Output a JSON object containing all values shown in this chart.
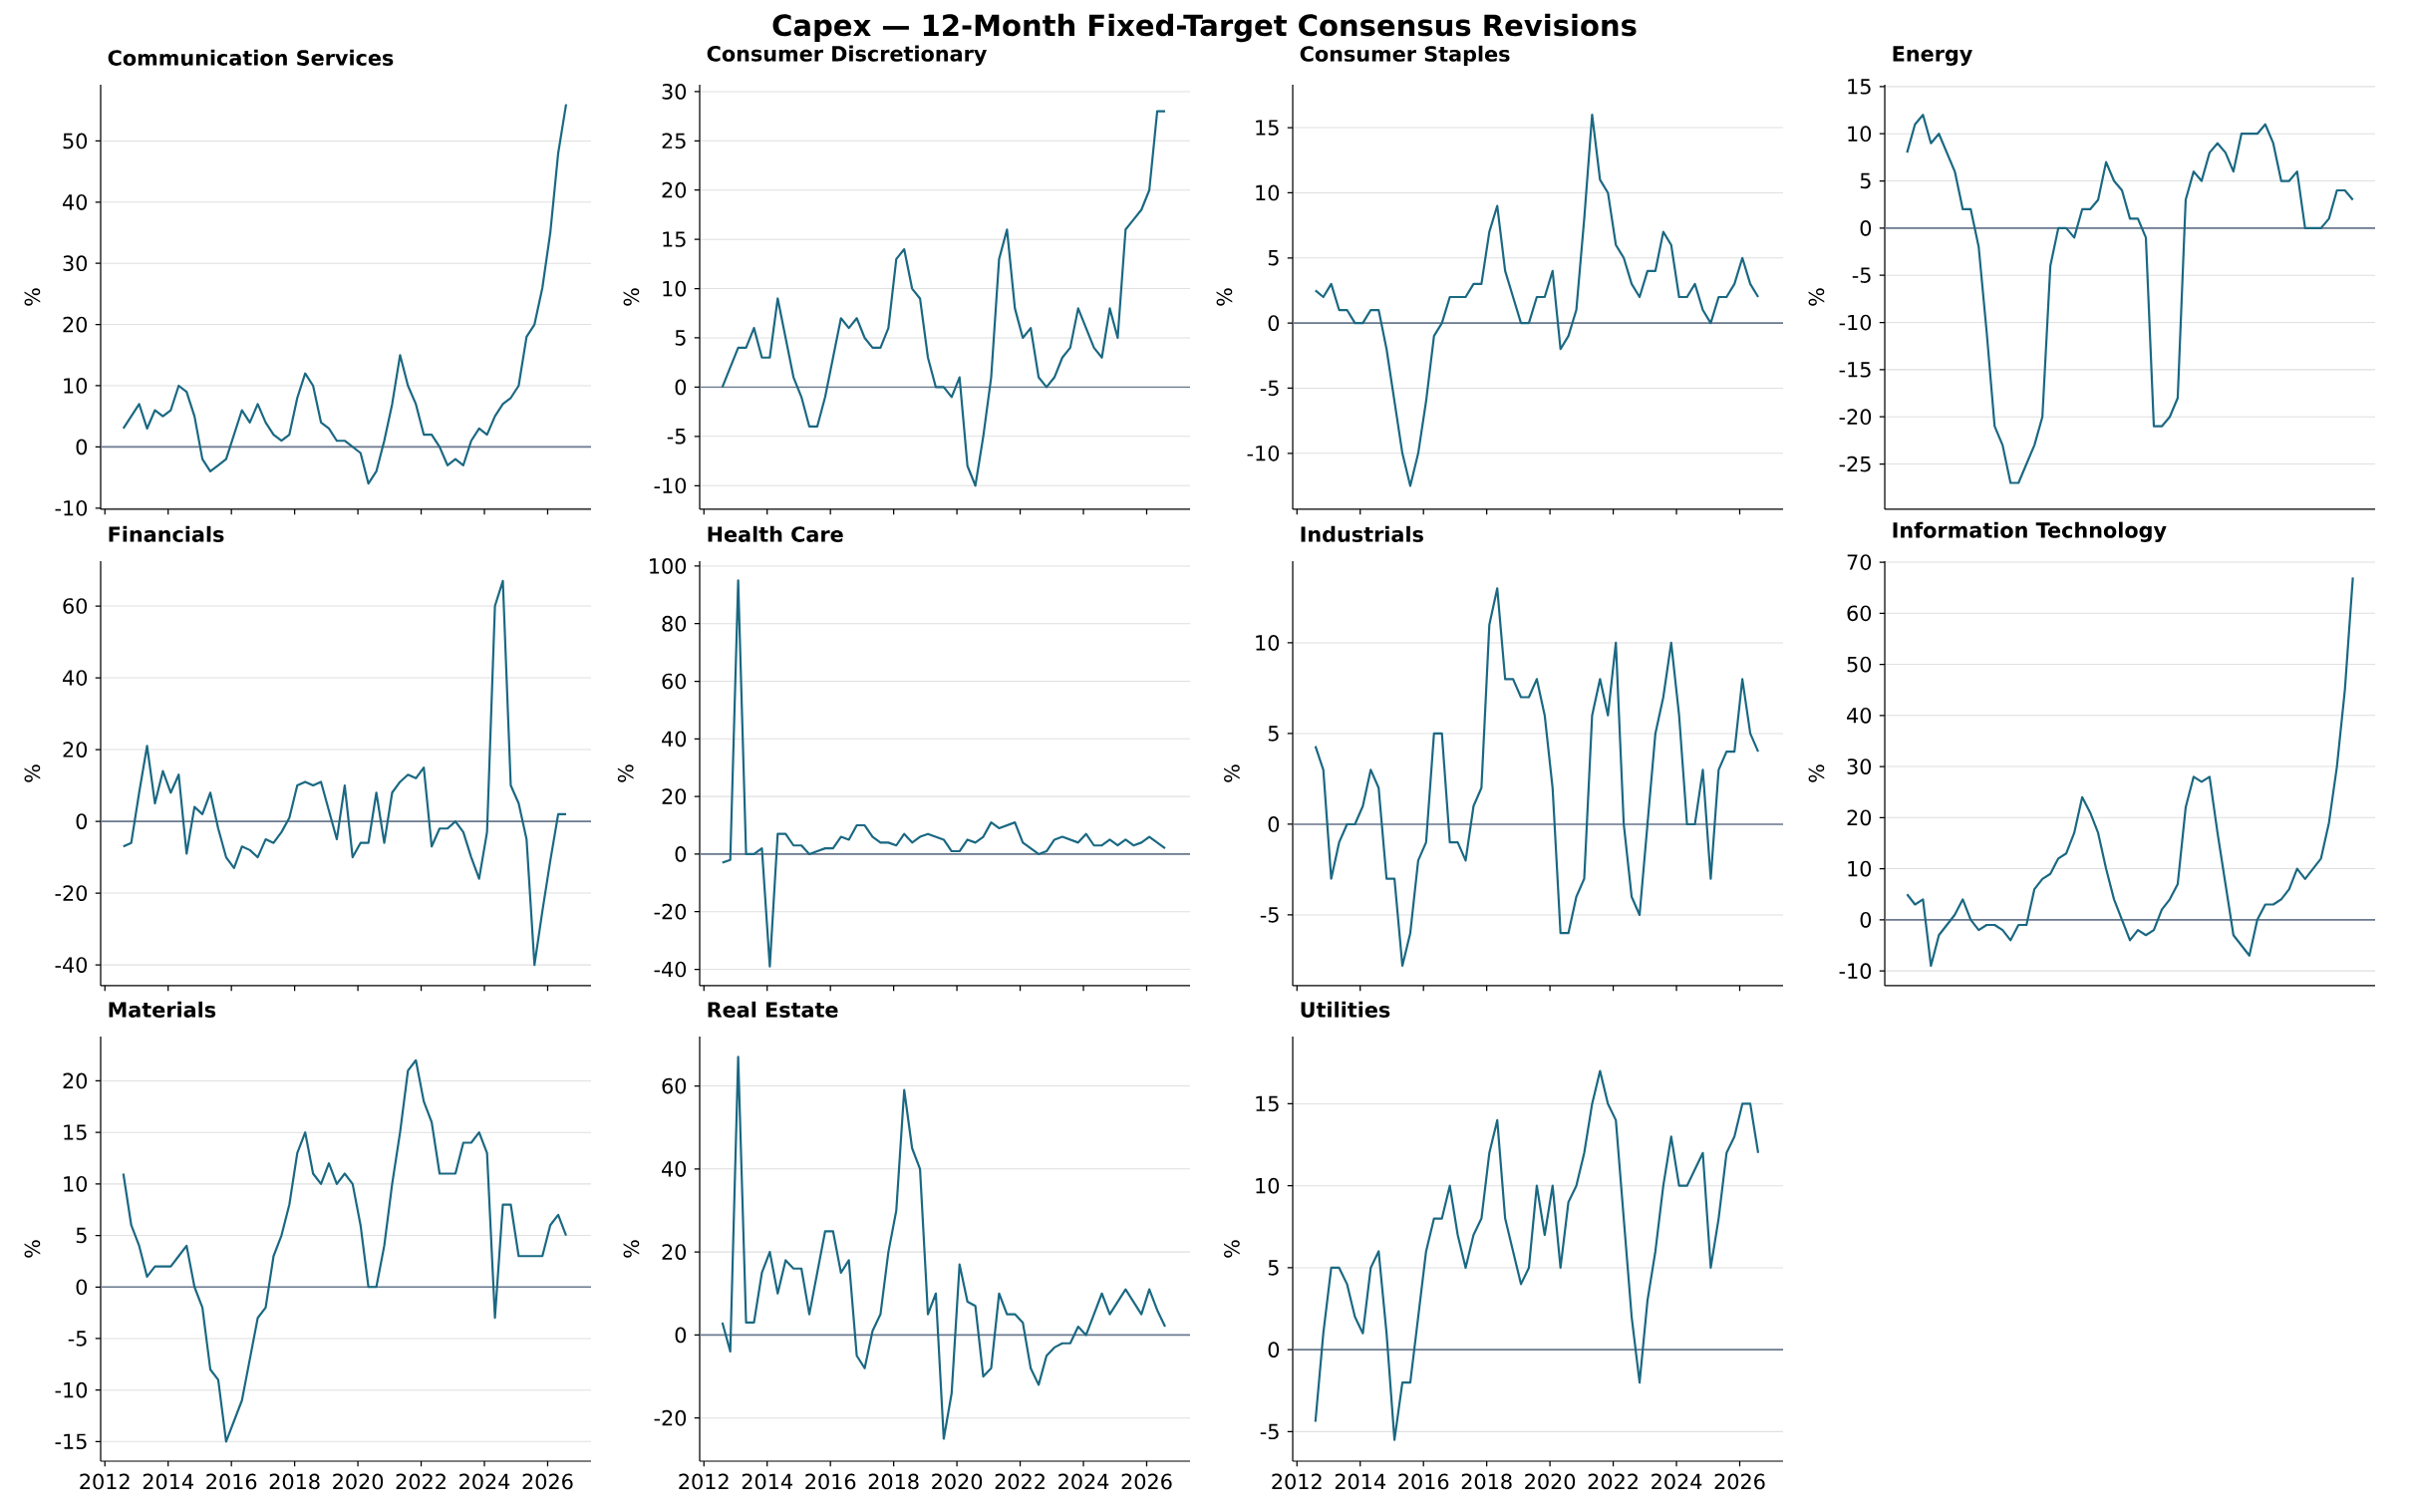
{
  "chart_data": [
    {
      "type": "other",
      "title": "Capex — 12-Month Fixed-Target Consensus Revisions"
    },
    {
      "type": "line",
      "title": "Communication Services",
      "ylabel": "%",
      "color": "#1a6882",
      "grid": "y",
      "tick_labels": "y",
      "xlim": [
        "2011-11-13",
        "2027-05-15"
      ],
      "xticks": [
        "2012",
        "2014",
        "2016",
        "2018",
        "2020",
        "2022",
        "2024",
        "2026"
      ],
      "ylim": [
        -10.2,
        59.2
      ],
      "yticks": [
        -10,
        0,
        10,
        20,
        30,
        40,
        50
      ],
      "ref_lines": [
        {
          "axis": "y",
          "value": 0,
          "color": "#6b7a8f"
        }
      ],
      "x": [
        "2012-08",
        "2012-11",
        "2013-02",
        "2013-05",
        "2013-08",
        "2013-11",
        "2014-02",
        "2014-05",
        "2014-08",
        "2014-11",
        "2015-02",
        "2015-05",
        "2015-08",
        "2015-11",
        "2016-02",
        "2016-05",
        "2016-08",
        "2016-11",
        "2017-02",
        "2017-05",
        "2017-08",
        "2017-11",
        "2018-02",
        "2018-05",
        "2018-08",
        "2018-11",
        "2019-02",
        "2019-05",
        "2019-08",
        "2019-11",
        "2020-02",
        "2020-05",
        "2020-08",
        "2020-11",
        "2021-02",
        "2021-05",
        "2021-08",
        "2021-11",
        "2022-02",
        "2022-05",
        "2022-08",
        "2022-11",
        "2023-02",
        "2023-05",
        "2023-08",
        "2023-11",
        "2024-02",
        "2024-05",
        "2024-08",
        "2024-11",
        "2025-02",
        "2025-05",
        "2025-08",
        "2025-11",
        "2026-02",
        "2026-05",
        "2026-08"
      ],
      "values": [
        3,
        5,
        7,
        3,
        6,
        5,
        6,
        10,
        9,
        5,
        -2,
        -4,
        -3,
        -2,
        2,
        6,
        4,
        7,
        4,
        2,
        1,
        2,
        8,
        12,
        10,
        4,
        3,
        1,
        1,
        0,
        -1,
        -6,
        -4,
        1,
        7,
        15,
        10,
        7,
        2,
        2,
        0,
        -3,
        -2,
        -3,
        1,
        3,
        2,
        5,
        7,
        8,
        10,
        18,
        20,
        26,
        35,
        48,
        56
      ]
    },
    {
      "type": "line",
      "title": "Consumer Discretionary",
      "ylabel": "%",
      "color": "#1a6882",
      "grid": "y",
      "tick_labels": "y",
      "xlim": [
        "2011-11-13",
        "2027-05-15"
      ],
      "xticks": [
        "2012",
        "2014",
        "2016",
        "2018",
        "2020",
        "2022",
        "2024",
        "2026"
      ],
      "ylim": [
        -12.4,
        30.7
      ],
      "yticks": [
        -10,
        -5,
        0,
        5,
        10,
        15,
        20,
        25,
        30
      ],
      "ref_lines": [
        {
          "axis": "y",
          "value": 0,
          "color": "#6b7a8f"
        }
      ],
      "x": [
        "2012-08",
        "2012-11",
        "2013-02",
        "2013-05",
        "2013-08",
        "2013-11",
        "2014-02",
        "2014-05",
        "2014-08",
        "2014-11",
        "2015-02",
        "2015-05",
        "2015-08",
        "2015-11",
        "2016-02",
        "2016-05",
        "2016-08",
        "2016-11",
        "2017-02",
        "2017-05",
        "2017-08",
        "2017-11",
        "2018-02",
        "2018-05",
        "2018-08",
        "2018-11",
        "2019-02",
        "2019-05",
        "2019-08",
        "2019-11",
        "2020-02",
        "2020-05",
        "2020-08",
        "2020-11",
        "2021-02",
        "2021-05",
        "2021-08",
        "2021-11",
        "2022-02",
        "2022-05",
        "2022-08",
        "2022-11",
        "2023-02",
        "2023-05",
        "2023-08",
        "2023-11",
        "2024-02",
        "2024-05",
        "2024-08",
        "2024-11",
        "2025-02",
        "2025-05",
        "2025-08",
        "2025-11",
        "2026-02",
        "2026-05",
        "2026-08"
      ],
      "values": [
        0,
        2,
        4,
        4,
        6,
        3,
        3,
        9,
        5,
        1,
        -1,
        -4,
        -4,
        -1,
        3,
        7,
        6,
        7,
        5,
        4,
        4,
        6,
        13,
        14,
        10,
        9,
        3,
        0,
        0,
        -1,
        1,
        -8,
        -10,
        -5,
        1,
        13,
        16,
        8,
        5,
        6,
        1,
        0,
        1,
        3,
        4,
        8,
        6,
        4,
        3,
        8,
        5,
        16,
        17,
        18,
        20,
        28,
        28
      ]
    },
    {
      "type": "line",
      "title": "Consumer Staples",
      "ylabel": "%",
      "color": "#1a6882",
      "grid": "y",
      "tick_labels": "y",
      "xlim": [
        "2011-11-13",
        "2027-05-15"
      ],
      "xticks": [
        "2012",
        "2014",
        "2016",
        "2018",
        "2020",
        "2022",
        "2024",
        "2026"
      ],
      "ylim": [
        -14.3,
        18.3
      ],
      "yticks": [
        -10,
        -5,
        0,
        5,
        10,
        15
      ],
      "ref_lines": [
        {
          "axis": "y",
          "value": 0,
          "color": "#6b7a8f"
        }
      ],
      "x": [
        "2012-08",
        "2012-11",
        "2013-02",
        "2013-05",
        "2013-08",
        "2013-11",
        "2014-02",
        "2014-05",
        "2014-08",
        "2014-11",
        "2015-02",
        "2015-05",
        "2015-08",
        "2015-11",
        "2016-02",
        "2016-05",
        "2016-08",
        "2016-11",
        "2017-02",
        "2017-05",
        "2017-08",
        "2017-11",
        "2018-02",
        "2018-05",
        "2018-08",
        "2018-11",
        "2019-02",
        "2019-05",
        "2019-08",
        "2019-11",
        "2020-02",
        "2020-05",
        "2020-08",
        "2020-11",
        "2021-02",
        "2021-05",
        "2021-08",
        "2021-11",
        "2022-02",
        "2022-05",
        "2022-08",
        "2022-11",
        "2023-02",
        "2023-05",
        "2023-08",
        "2023-11",
        "2024-02",
        "2024-05",
        "2024-08",
        "2024-11",
        "2025-02",
        "2025-05",
        "2025-08",
        "2025-11",
        "2026-02",
        "2026-05",
        "2026-08"
      ],
      "values": [
        2.5,
        2,
        3,
        1,
        1,
        0,
        0,
        1,
        1,
        -2,
        -6,
        -10,
        -12.5,
        -10,
        -6,
        -1,
        0,
        2,
        2,
        2,
        3,
        3,
        7,
        9,
        4,
        2,
        0,
        0,
        2,
        2,
        4,
        -2,
        -1,
        1,
        8,
        16,
        11,
        10,
        6,
        5,
        3,
        2,
        4,
        4,
        7,
        6,
        2,
        2,
        3,
        1,
        0,
        2,
        2,
        3,
        5,
        3,
        2
      ]
    },
    {
      "type": "line",
      "title": "Energy",
      "ylabel": "%",
      "color": "#1a6882",
      "grid": "y",
      "tick_labels": "y",
      "ylim": [
        -29.8,
        15.2
      ],
      "yticks": [
        -25,
        -20,
        -15,
        -10,
        -5,
        0,
        5,
        10,
        15
      ],
      "ref_lines": [
        {
          "axis": "y",
          "value": 0,
          "color": "#6b7a8f"
        }
      ],
      "categories": [
        null,
        null,
        null,
        null,
        null,
        null,
        null,
        null,
        null,
        null,
        null,
        null,
        null,
        null,
        null,
        null,
        null,
        null,
        null,
        null,
        null,
        null,
        null,
        null,
        null,
        null,
        null,
        null,
        null,
        null,
        null,
        null,
        null,
        null,
        null,
        null,
        null,
        null,
        null,
        null,
        null,
        null,
        null,
        null,
        null,
        null,
        null,
        null,
        null,
        null,
        null,
        null,
        null,
        null,
        null,
        null,
        null
      ],
      "values": [
        8,
        11,
        12,
        9,
        10,
        8,
        6,
        2,
        2,
        -2,
        -11,
        -21,
        -23,
        -27,
        -27,
        -25,
        -23,
        -20,
        -4,
        0,
        0,
        -1,
        2,
        2,
        3,
        7,
        5,
        4,
        1,
        1,
        -1,
        -21,
        -21,
        -20,
        -18,
        3,
        6,
        5,
        8,
        9,
        8,
        6,
        10,
        10,
        10,
        11,
        9,
        5,
        5,
        6,
        0,
        0,
        0,
        1,
        4,
        4,
        3
      ]
    },
    {
      "type": "line",
      "title": "Financials",
      "ylabel": "%",
      "color": "#1a6882",
      "grid": "y",
      "tick_labels": "y",
      "xlim": [
        "2011-11-13",
        "2027-05-15"
      ],
      "xticks": [
        "2012",
        "2014",
        "2016",
        "2018",
        "2020",
        "2022",
        "2024",
        "2026"
      ],
      "ylim": [
        -45.8,
        72.5
      ],
      "yticks": [
        -40,
        -20,
        0,
        20,
        40,
        60
      ],
      "ref_lines": [
        {
          "axis": "y",
          "value": 0,
          "color": "#6b7a8f"
        }
      ],
      "x": [
        "2012-08",
        "2012-11",
        "2013-02",
        "2013-05",
        "2013-08",
        "2013-11",
        "2014-02",
        "2014-05",
        "2014-08",
        "2014-11",
        "2015-02",
        "2015-05",
        "2015-08",
        "2015-11",
        "2016-02",
        "2016-05",
        "2016-08",
        "2016-11",
        "2017-02",
        "2017-05",
        "2017-08",
        "2017-11",
        "2018-02",
        "2018-05",
        "2018-08",
        "2018-11",
        "2019-02",
        "2019-05",
        "2019-08",
        "2019-11",
        "2020-02",
        "2020-05",
        "2020-08",
        "2020-11",
        "2021-02",
        "2021-05",
        "2021-08",
        "2021-11",
        "2022-02",
        "2022-05",
        "2022-08",
        "2022-11",
        "2023-02",
        "2023-05",
        "2023-08",
        "2023-11",
        "2024-02",
        "2024-05",
        "2024-08",
        "2024-11",
        "2025-02",
        "2025-05",
        "2025-08",
        "2025-11",
        "2026-02",
        "2026-05",
        "2026-08"
      ],
      "values": [
        -7,
        -6,
        8,
        21,
        5,
        14,
        8,
        13,
        -9,
        4,
        2,
        8,
        -2,
        -10,
        -13,
        -7,
        -8,
        -10,
        -5,
        -6,
        -3,
        1,
        10,
        11,
        10,
        11,
        3,
        -5,
        10,
        -10,
        -6,
        -6,
        8,
        -6,
        8,
        11,
        13,
        12,
        15,
        -7,
        -2,
        -2,
        0,
        -3,
        -10,
        -16,
        -3,
        60,
        67,
        10,
        5,
        -5,
        -40,
        -25,
        -11,
        2,
        2
      ]
    },
    {
      "type": "line",
      "title": "Health Care",
      "ylabel": "%",
      "color": "#1a6882",
      "grid": "y",
      "tick_labels": "y",
      "xlim": [
        "2011-11-13",
        "2027-05-15"
      ],
      "xticks": [
        "2012",
        "2014",
        "2016",
        "2018",
        "2020",
        "2022",
        "2024",
        "2026"
      ],
      "ylim": [
        -45.7,
        101.7
      ],
      "yticks": [
        -40,
        -20,
        0,
        20,
        40,
        60,
        80,
        100
      ],
      "ref_lines": [
        {
          "axis": "y",
          "value": 0,
          "color": "#6b7a8f"
        }
      ],
      "x": [
        "2012-08",
        "2012-11",
        "2013-02",
        "2013-05",
        "2013-08",
        "2013-11",
        "2014-02",
        "2014-05",
        "2014-08",
        "2014-11",
        "2015-02",
        "2015-05",
        "2015-08",
        "2015-11",
        "2016-02",
        "2016-05",
        "2016-08",
        "2016-11",
        "2017-02",
        "2017-05",
        "2017-08",
        "2017-11",
        "2018-02",
        "2018-05",
        "2018-08",
        "2018-11",
        "2019-02",
        "2019-05",
        "2019-08",
        "2019-11",
        "2020-02",
        "2020-05",
        "2020-08",
        "2020-11",
        "2021-02",
        "2021-05",
        "2021-08",
        "2021-11",
        "2022-02",
        "2022-05",
        "2022-08",
        "2022-11",
        "2023-02",
        "2023-05",
        "2023-08",
        "2023-11",
        "2024-02",
        "2024-05",
        "2024-08",
        "2024-11",
        "2025-02",
        "2025-05",
        "2025-08",
        "2025-11",
        "2026-02",
        "2026-05",
        "2026-08"
      ],
      "values": [
        -3,
        -2,
        95,
        0,
        0,
        2,
        -39,
        7,
        7,
        3,
        3,
        0,
        1,
        2,
        2,
        6,
        5,
        10,
        10,
        6,
        4,
        4,
        3,
        7,
        4,
        6,
        7,
        6,
        5,
        1,
        1,
        5,
        4,
        6,
        11,
        9,
        10,
        11,
        4,
        2,
        0,
        1,
        5,
        6,
        5,
        4,
        7,
        3,
        3,
        5,
        3,
        5,
        3,
        4,
        6,
        4,
        2
      ]
    },
    {
      "type": "line",
      "title": "Industrials",
      "ylabel": "%",
      "color": "#1a6882",
      "grid": "y",
      "tick_labels": "y",
      "xlim": [
        "2011-11-13",
        "2027-05-15"
      ],
      "xticks": [
        "2012",
        "2014",
        "2016",
        "2018",
        "2020",
        "2022",
        "2024",
        "2026"
      ],
      "ylim": [
        -8.9,
        14.5
      ],
      "yticks": [
        -5,
        0,
        5,
        10
      ],
      "ref_lines": [
        {
          "axis": "y",
          "value": 0,
          "color": "#6b7a8f"
        }
      ],
      "x": [
        "2012-08",
        "2012-11",
        "2013-02",
        "2013-05",
        "2013-08",
        "2013-11",
        "2014-02",
        "2014-05",
        "2014-08",
        "2014-11",
        "2015-02",
        "2015-05",
        "2015-08",
        "2015-11",
        "2016-02",
        "2016-05",
        "2016-08",
        "2016-11",
        "2017-02",
        "2017-05",
        "2017-08",
        "2017-11",
        "2018-02",
        "2018-05",
        "2018-08",
        "2018-11",
        "2019-02",
        "2019-05",
        "2019-08",
        "2019-11",
        "2020-02",
        "2020-05",
        "2020-08",
        "2020-11",
        "2021-02",
        "2021-05",
        "2021-08",
        "2021-11",
        "2022-02",
        "2022-05",
        "2022-08",
        "2022-11",
        "2023-02",
        "2023-05",
        "2023-08",
        "2023-11",
        "2024-02",
        "2024-05",
        "2024-08",
        "2024-11",
        "2025-02",
        "2025-05",
        "2025-08",
        "2025-11",
        "2026-02",
        "2026-05",
        "2026-08"
      ],
      "values": [
        4.3,
        3,
        -3,
        -1,
        0,
        0,
        1,
        3,
        2,
        -3,
        -3,
        -7.8,
        -6,
        -2,
        -1,
        5,
        5,
        -1,
        -1,
        -2,
        1,
        2,
        11,
        13,
        8,
        8,
        7,
        7,
        8,
        6,
        2,
        -6,
        -6,
        -4,
        -3,
        6,
        8,
        6,
        10,
        0,
        -4,
        -5,
        0,
        5,
        7,
        10,
        6,
        0,
        0,
        3,
        -3,
        3,
        4,
        4,
        8,
        5,
        4
      ]
    },
    {
      "type": "line",
      "title": "Information Technology",
      "ylabel": "%",
      "color": "#1a6882",
      "grid": "y",
      "tick_labels": "y",
      "ylim": [
        -12.9,
        70.2
      ],
      "yticks": [
        -10,
        0,
        10,
        20,
        30,
        40,
        50,
        60,
        70
      ],
      "ref_lines": [
        {
          "axis": "y",
          "value": 0,
          "color": "#6b7a8f"
        }
      ],
      "categories": [
        null,
        null,
        null,
        null,
        null,
        null,
        null,
        null,
        null,
        null,
        null,
        null,
        null,
        null,
        null,
        null,
        null,
        null,
        null,
        null,
        null,
        null,
        null,
        null,
        null,
        null,
        null,
        null,
        null,
        null,
        null,
        null,
        null,
        null,
        null,
        null,
        null,
        null,
        null,
        null,
        null,
        null,
        null,
        null,
        null,
        null,
        null,
        null,
        null,
        null,
        null,
        null,
        null,
        null,
        null,
        null,
        null
      ],
      "values": [
        5,
        3,
        4,
        -9,
        -3,
        -1,
        1,
        4,
        0,
        -2,
        -1,
        -1,
        -2,
        -4,
        -1,
        -1,
        6,
        8,
        9,
        12,
        13,
        17,
        24,
        21,
        17,
        10,
        4,
        0,
        -4,
        -2,
        -3,
        -2,
        2,
        4,
        7,
        22,
        28,
        27,
        28,
        17,
        7,
        -3,
        -5,
        -7,
        0,
        3,
        3,
        4,
        6,
        10,
        8,
        10,
        12,
        19,
        30,
        45,
        67
      ]
    },
    {
      "type": "line",
      "title": "Materials",
      "ylabel": "%",
      "color": "#1a6882",
      "grid": "y",
      "xlim": [
        "2011-11-13",
        "2027-05-15"
      ],
      "xticks": [
        "2012",
        "2014",
        "2016",
        "2018",
        "2020",
        "2022",
        "2024",
        "2026"
      ],
      "ylim": [
        -16.9,
        24.3
      ],
      "yticks": [
        -15,
        -10,
        -5,
        0,
        5,
        10,
        15,
        20
      ],
      "ref_lines": [
        {
          "axis": "y",
          "value": 0,
          "color": "#6b7a8f"
        }
      ],
      "x": [
        "2012-08",
        "2012-11",
        "2013-02",
        "2013-05",
        "2013-08",
        "2013-11",
        "2014-02",
        "2014-05",
        "2014-08",
        "2014-11",
        "2015-02",
        "2015-05",
        "2015-08",
        "2015-11",
        "2016-02",
        "2016-05",
        "2016-08",
        "2016-11",
        "2017-02",
        "2017-05",
        "2017-08",
        "2017-11",
        "2018-02",
        "2018-05",
        "2018-08",
        "2018-11",
        "2019-02",
        "2019-05",
        "2019-08",
        "2019-11",
        "2020-02",
        "2020-05",
        "2020-08",
        "2020-11",
        "2021-02",
        "2021-05",
        "2021-08",
        "2021-11",
        "2022-02",
        "2022-05",
        "2022-08",
        "2022-11",
        "2023-02",
        "2023-05",
        "2023-08",
        "2023-11",
        "2024-02",
        "2024-05",
        "2024-08",
        "2024-11",
        "2025-02",
        "2025-05",
        "2025-08",
        "2025-11",
        "2026-02",
        "2026-05",
        "2026-08"
      ],
      "values": [
        11,
        6,
        4,
        1,
        2,
        2,
        2,
        3,
        4,
        0,
        -2,
        -8,
        -9,
        -15,
        -13,
        -11,
        -7,
        -3,
        -2,
        3,
        5,
        8,
        13,
        15,
        11,
        10,
        12,
        10,
        11,
        10,
        6,
        0,
        0,
        4,
        10,
        15,
        21,
        22,
        18,
        16,
        11,
        11,
        11,
        14,
        14,
        15,
        13,
        -3,
        8,
        8,
        3,
        3,
        3,
        3,
        6,
        7,
        5
      ]
    },
    {
      "type": "line",
      "title": "Real Estate",
      "ylabel": "%",
      "color": "#1a6882",
      "grid": "y",
      "xlim": [
        "2011-11-13",
        "2027-05-15"
      ],
      "xticks": [
        "2012",
        "2014",
        "2016",
        "2018",
        "2020",
        "2022",
        "2024",
        "2026"
      ],
      "ylim": [
        -30.4,
        71.9
      ],
      "yticks": [
        -20,
        0,
        20,
        40,
        60
      ],
      "ref_lines": [
        {
          "axis": "y",
          "value": 0,
          "color": "#6b7a8f"
        }
      ],
      "x": [
        "2012-08",
        "2012-11",
        "2013-02",
        "2013-05",
        "2013-08",
        "2013-11",
        "2014-02",
        "2014-05",
        "2014-08",
        "2014-11",
        "2015-02",
        "2015-05",
        "2015-08",
        "2015-11",
        "2016-02",
        "2016-05",
        "2016-08",
        "2016-11",
        "2017-02",
        "2017-05",
        "2017-08",
        "2017-11",
        "2018-02",
        "2018-05",
        "2018-08",
        "2018-11",
        "2019-02",
        "2019-05",
        "2019-08",
        "2019-11",
        "2020-02",
        "2020-05",
        "2020-08",
        "2020-11",
        "2021-02",
        "2021-05",
        "2021-08",
        "2021-11",
        "2022-02",
        "2022-05",
        "2022-08",
        "2022-11",
        "2023-02",
        "2023-05",
        "2023-08",
        "2023-11",
        "2024-02",
        "2024-05",
        "2024-08",
        "2024-11",
        "2025-02",
        "2025-05",
        "2025-08",
        "2025-11",
        "2026-02",
        "2026-05",
        "2026-08"
      ],
      "values": [
        3,
        -4,
        67,
        3,
        3,
        15,
        20,
        10,
        18,
        16,
        16,
        5,
        15,
        25,
        25,
        15,
        18,
        -5,
        -8,
        1,
        5,
        20,
        30,
        59,
        45,
        40,
        5,
        10,
        -25,
        -14,
        17,
        8,
        7,
        -10,
        -8,
        10,
        5,
        5,
        3,
        -8,
        -12,
        -5,
        -3,
        -2,
        -2,
        2,
        0,
        5,
        10,
        5,
        8,
        11,
        8,
        5,
        11,
        6,
        2
      ]
    },
    {
      "type": "line",
      "title": "Utilities",
      "ylabel": "%",
      "color": "#1a6882",
      "grid": "y",
      "xlim": [
        "2011-11-13",
        "2027-05-15"
      ],
      "xticks": [
        "2012",
        "2014",
        "2016",
        "2018",
        "2020",
        "2022",
        "2024",
        "2026"
      ],
      "ylim": [
        -6.8,
        19.1
      ],
      "yticks": [
        -5,
        0,
        5,
        10,
        15
      ],
      "ref_lines": [
        {
          "axis": "y",
          "value": 0,
          "color": "#6b7a8f"
        }
      ],
      "x": [
        "2012-08",
        "2012-11",
        "2013-02",
        "2013-05",
        "2013-08",
        "2013-11",
        "2014-02",
        "2014-05",
        "2014-08",
        "2014-11",
        "2015-02",
        "2015-05",
        "2015-08",
        "2015-11",
        "2016-02",
        "2016-05",
        "2016-08",
        "2016-11",
        "2017-02",
        "2017-05",
        "2017-08",
        "2017-11",
        "2018-02",
        "2018-05",
        "2018-08",
        "2018-11",
        "2019-02",
        "2019-05",
        "2019-08",
        "2019-11",
        "2020-02",
        "2020-05",
        "2020-08",
        "2020-11",
        "2021-02",
        "2021-05",
        "2021-08",
        "2021-11",
        "2022-02",
        "2022-05",
        "2022-08",
        "2022-11",
        "2023-02",
        "2023-05",
        "2023-08",
        "2023-11",
        "2024-02",
        "2024-05",
        "2024-08",
        "2024-11",
        "2025-02",
        "2025-05",
        "2025-08",
        "2025-11",
        "2026-02",
        "2026-05",
        "2026-08"
      ],
      "values": [
        -4.4,
        1,
        5,
        5,
        4,
        2,
        1,
        5,
        6,
        1,
        -5.5,
        -2,
        -2,
        2,
        6,
        8,
        8,
        10,
        7,
        5,
        7,
        8,
        12,
        14,
        8,
        6,
        4,
        5,
        10,
        7,
        10,
        5,
        9,
        10,
        12,
        15,
        17,
        15,
        14,
        8,
        2,
        -2,
        3,
        6,
        10,
        13,
        10,
        10,
        11,
        12,
        5,
        8,
        12,
        13,
        15,
        15,
        12
      ]
    }
  ]
}
